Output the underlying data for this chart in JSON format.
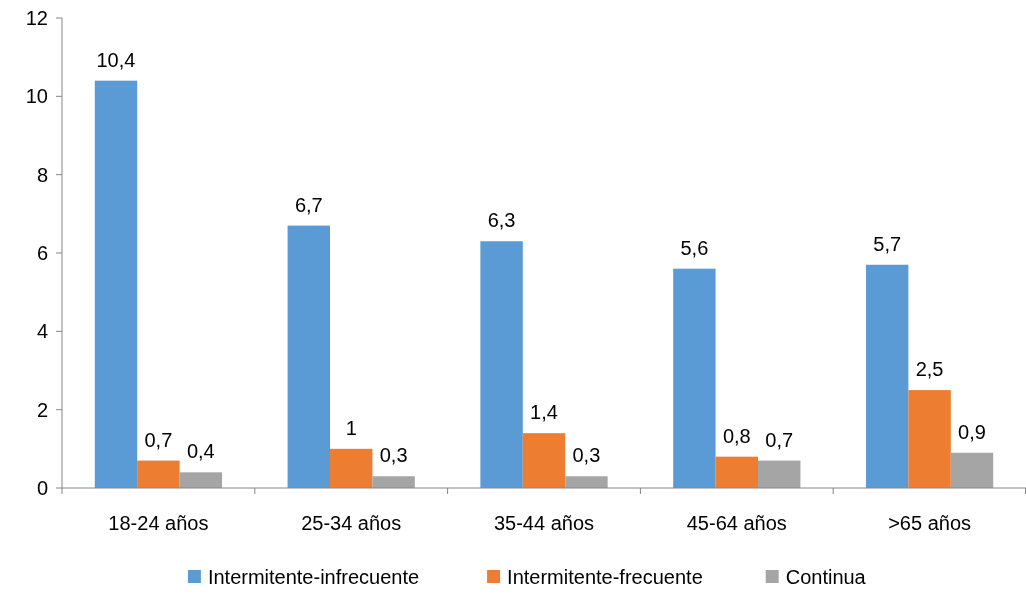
{
  "chart_data": {
    "type": "bar",
    "categories": [
      "18-24 años",
      "25-34 años",
      "35-44 años",
      "45-64 años",
      ">65 años"
    ],
    "series": [
      {
        "name": "Intermitente-infrecuente",
        "color": "#5b9bd5",
        "values": [
          10.4,
          6.7,
          6.3,
          5.6,
          5.7
        ],
        "value_labels": [
          "10,4",
          "6,7",
          "6,3",
          "5,6",
          "5,7"
        ]
      },
      {
        "name": "Intermitente-frecuente",
        "color": "#ed7d31",
        "values": [
          0.7,
          1,
          1.4,
          0.8,
          2.5
        ],
        "value_labels": [
          "0,7",
          "1",
          "1,4",
          "0,8",
          "2,5"
        ]
      },
      {
        "name": "Continua",
        "color": "#a5a5a5",
        "values": [
          0.4,
          0.3,
          0.3,
          0.7,
          0.9
        ],
        "value_labels": [
          "0,4",
          "0,3",
          "0,3",
          "0,7",
          "0,9"
        ]
      }
    ],
    "ylim": [
      0,
      12
    ],
    "yticks": [
      0,
      2,
      4,
      6,
      8,
      10,
      12
    ],
    "grid": false,
    "legend": "bottom"
  }
}
